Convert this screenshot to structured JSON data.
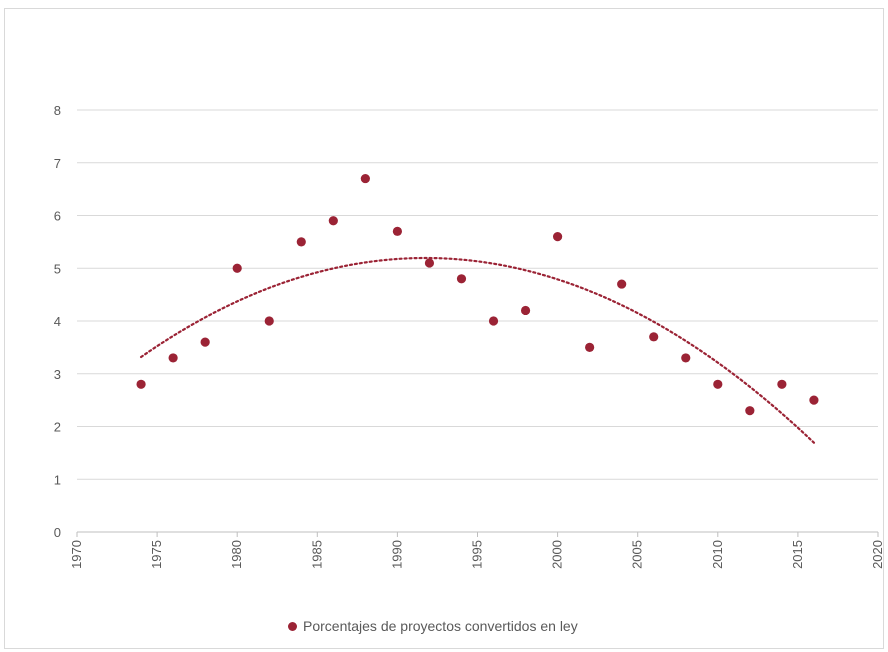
{
  "colors": {
    "series": "#9b2335",
    "grid": "#d9d9d9",
    "text": "#595959"
  },
  "chart_data": {
    "type": "scatter",
    "title": "",
    "xlabel": "",
    "ylabel": "",
    "xlim": [
      1970,
      2020
    ],
    "ylim": [
      0,
      8
    ],
    "x_ticks": [
      "1970",
      "1975",
      "1980",
      "1985",
      "1990",
      "1995",
      "2000",
      "2005",
      "2010",
      "2015",
      "2020"
    ],
    "y_ticks": [
      "0",
      "1",
      "2",
      "3",
      "4",
      "5",
      "6",
      "7",
      "8"
    ],
    "grid": true,
    "legend_position": "bottom",
    "series": [
      {
        "name": "Porcentajes de proyectos convertidos en ley",
        "x": [
          1974,
          1976,
          1978,
          1980,
          1982,
          1984,
          1986,
          1988,
          1990,
          1992,
          1994,
          1996,
          1998,
          2000,
          2002,
          2004,
          2006,
          2008,
          2010,
          2012,
          2014,
          2016
        ],
        "y": [
          2.8,
          3.3,
          3.6,
          5.0,
          4.0,
          5.5,
          5.9,
          6.7,
          5.7,
          5.1,
          4.8,
          4.0,
          4.2,
          5.6,
          3.5,
          4.7,
          3.7,
          3.3,
          2.8,
          2.3,
          2.8,
          2.5
        ]
      }
    ],
    "trendline": {
      "type": "polynomial",
      "style": "dotted",
      "x_range": [
        1974,
        2016
      ]
    }
  }
}
